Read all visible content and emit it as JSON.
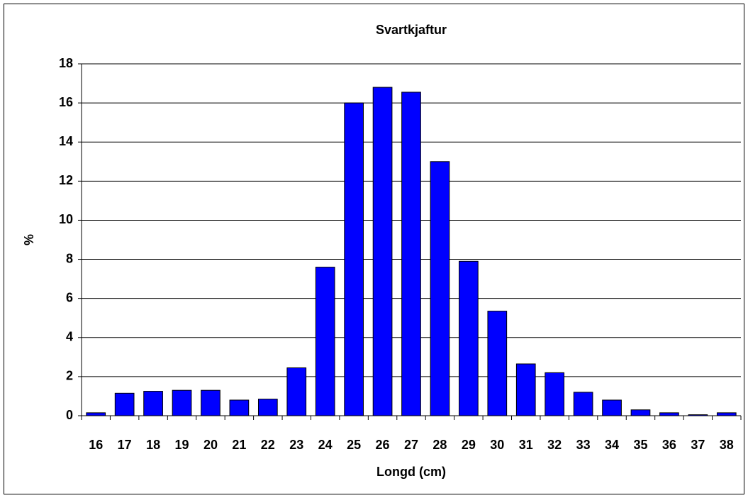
{
  "chart_data": {
    "type": "bar",
    "title": "Svartkjaftur",
    "x_label": "Longd (cm)",
    "y_label": "%",
    "categories": [
      "16",
      "17",
      "18",
      "19",
      "20",
      "21",
      "22",
      "23",
      "24",
      "25",
      "26",
      "27",
      "28",
      "29",
      "30",
      "31",
      "32",
      "33",
      "34",
      "35",
      "36",
      "37",
      "38"
    ],
    "values": [
      0.15,
      1.15,
      1.25,
      1.3,
      1.3,
      0.8,
      0.85,
      2.45,
      7.6,
      16.0,
      16.8,
      16.55,
      13.0,
      7.9,
      5.35,
      2.65,
      2.2,
      1.2,
      0.8,
      0.3,
      0.15,
      0.05,
      0.15
    ],
    "color": "#0000ff",
    "ylim": [
      0,
      18
    ],
    "yticks": [
      0,
      2,
      4,
      6,
      8,
      10,
      12,
      14,
      16,
      18
    ],
    "grid": true
  }
}
